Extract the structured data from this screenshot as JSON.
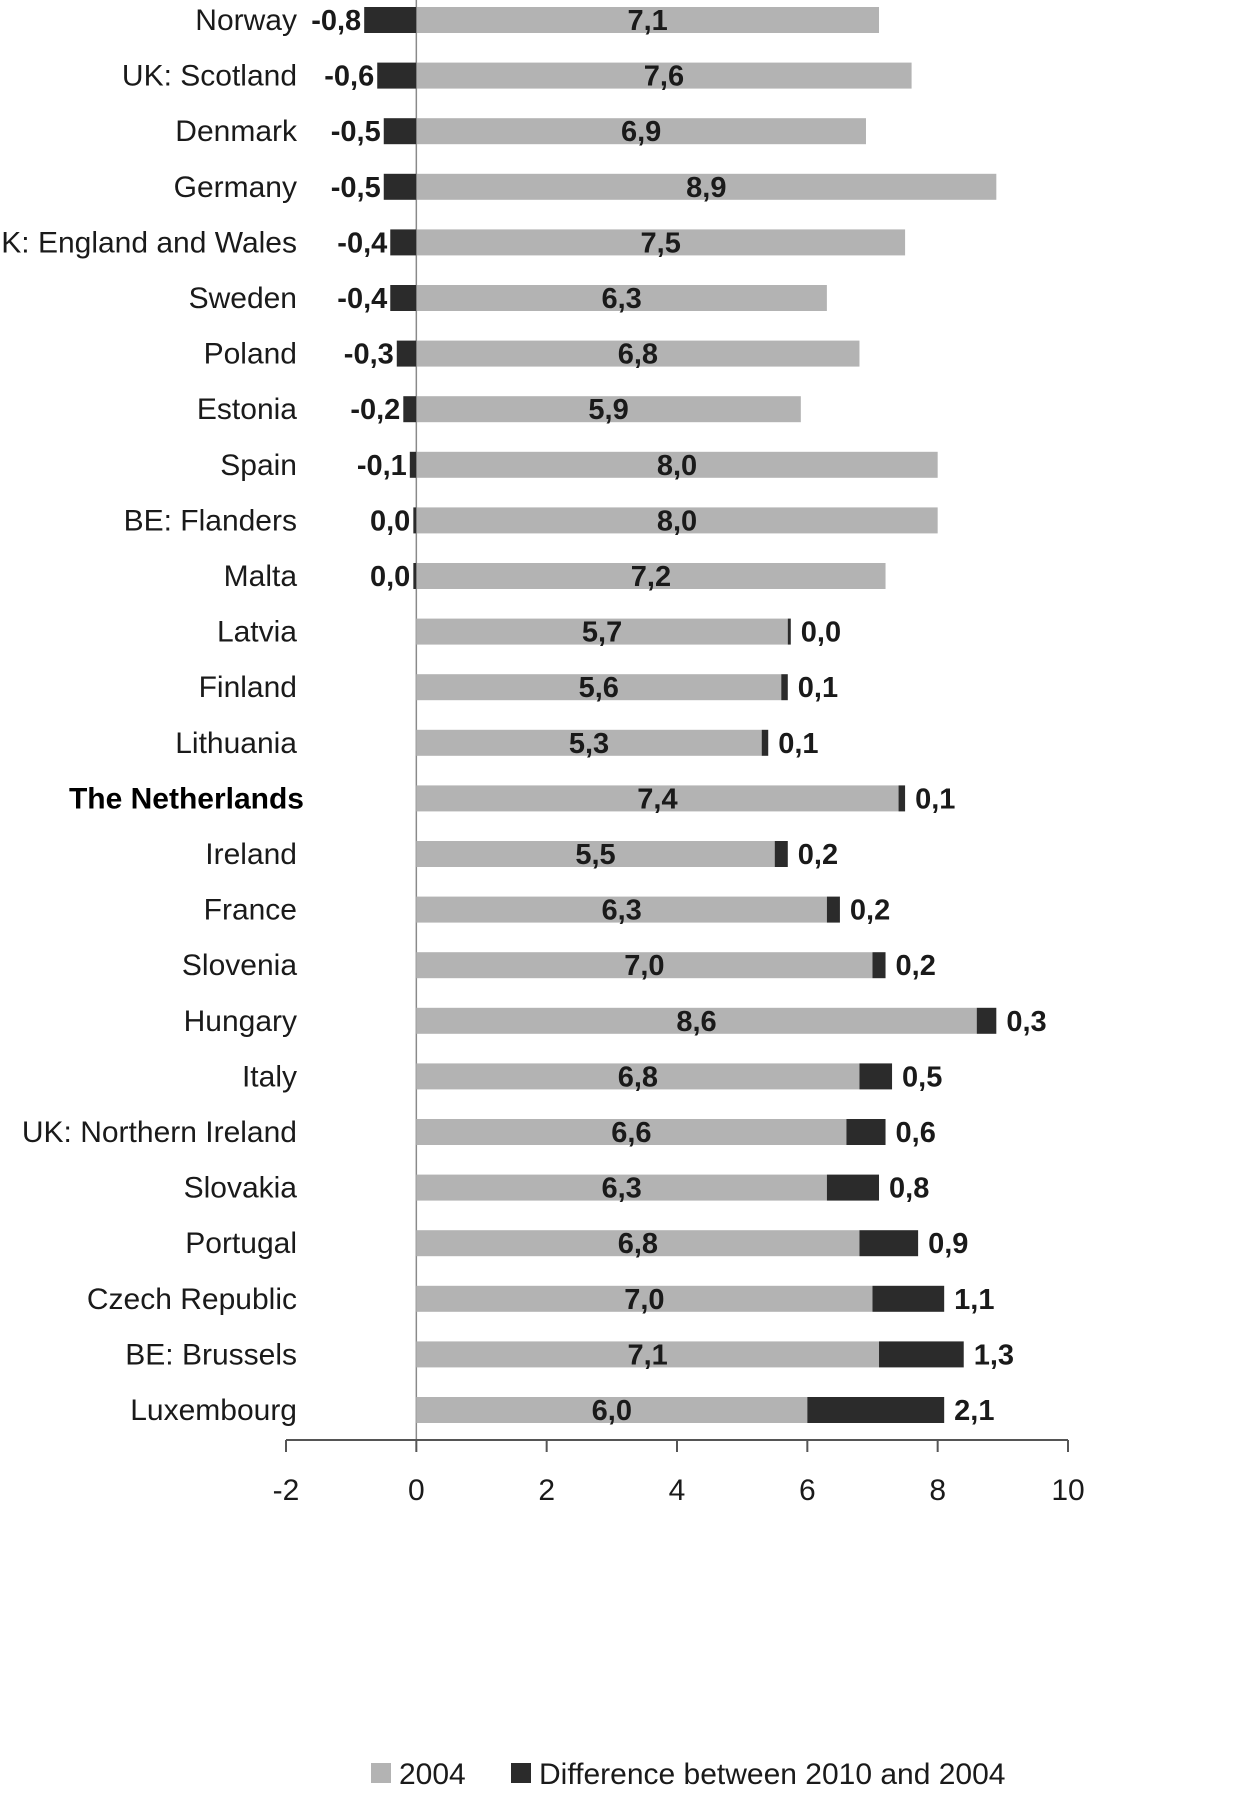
{
  "chart_data": {
    "type": "bar",
    "orientation": "horizontal",
    "stacked": true,
    "highlighted_category": "The Netherlands",
    "categories": [
      "Norway",
      "UK: Scotland",
      "Denmark",
      "Germany",
      "UK: England and Wales",
      "Sweden",
      "Poland",
      "Estonia",
      "Spain",
      "BE: Flanders",
      "Malta",
      "Latvia",
      "Finland",
      "Lithuania",
      "The Netherlands",
      "Ireland",
      "France",
      "Slovenia",
      "Hungary",
      "Italy",
      "UK: Northern Ireland",
      "Slovakia",
      "Portugal",
      "Czech Republic",
      "BE: Brussels",
      "Luxembourg"
    ],
    "series": [
      {
        "name": "2004",
        "color": "#b3b3b3",
        "values": [
          7.1,
          7.6,
          6.9,
          8.9,
          7.5,
          6.3,
          6.8,
          5.9,
          8.0,
          8.0,
          7.2,
          5.7,
          5.6,
          5.3,
          7.4,
          5.5,
          6.3,
          7.0,
          8.6,
          6.8,
          6.6,
          6.3,
          6.8,
          7.0,
          7.1,
          6.0
        ],
        "labels": [
          "7,1",
          "7,6",
          "6,9",
          "8,9",
          "7,5",
          "6,3",
          "6,8",
          "5,9",
          "8,0",
          "8,0",
          "7,2",
          "5,7",
          "5,6",
          "5,3",
          "7,4",
          "5,5",
          "6,3",
          "7,0",
          "8,6",
          "6,8",
          "6,6",
          "6,3",
          "6,8",
          "7,0",
          "7,1",
          "6,0"
        ]
      },
      {
        "name": "Difference between 2010 and 2004",
        "color": "#2b2b2b",
        "values": [
          -0.8,
          -0.6,
          -0.5,
          -0.5,
          -0.4,
          -0.4,
          -0.3,
          -0.2,
          -0.1,
          0.0,
          0.0,
          0.0,
          0.1,
          0.1,
          0.1,
          0.2,
          0.2,
          0.2,
          0.3,
          0.5,
          0.6,
          0.8,
          0.9,
          1.1,
          1.3,
          2.1
        ],
        "labels": [
          "-0,8",
          "-0,6",
          "-0,5",
          "-0,5",
          "-0,4",
          "-0,4",
          "-0,3",
          "-0,2",
          "-0,1",
          "0,0",
          "0,0",
          "0,0",
          "0,1",
          "0,1",
          "0,1",
          "0,2",
          "0,2",
          "0,2",
          "0,3",
          "0,5",
          "0,6",
          "0,8",
          "0,9",
          "1,1",
          "1,3",
          "2,1"
        ]
      }
    ],
    "xlim": [
      -2,
      10
    ],
    "xticks": [
      "-2",
      "0",
      "2",
      "4",
      "6",
      "8",
      "10"
    ],
    "title": "",
    "xlabel": "",
    "ylabel": "",
    "grid": false,
    "legend_position": "bottom"
  }
}
